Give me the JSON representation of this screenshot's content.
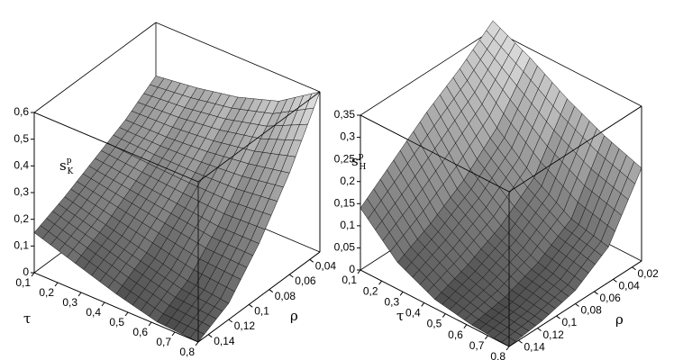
{
  "chart_data": [
    {
      "type": "surface",
      "xlabel": "τ",
      "ylabel": "ρ",
      "zlabel": {
        "base": "s",
        "sup": "p",
        "sub": "K"
      },
      "x": [
        0.1,
        0.275,
        0.45,
        0.625,
        0.8
      ],
      "y": [
        0.15,
        0.12,
        0.09,
        0.06,
        0.03
      ],
      "z": [
        [
          0.15,
          0.1,
          0.05,
          0.01,
          0.0
        ],
        [
          0.2,
          0.16,
          0.12,
          0.08,
          0.06
        ],
        [
          0.26,
          0.24,
          0.22,
          0.2,
          0.2
        ],
        [
          0.32,
          0.32,
          0.33,
          0.35,
          0.38
        ],
        [
          0.4,
          0.42,
          0.45,
          0.5,
          0.6
        ]
      ],
      "xlim": [
        0.1,
        0.8
      ],
      "ylim": [
        0.03,
        0.15
      ],
      "zlim": [
        0,
        0.6
      ],
      "xticks": [
        {
          "value": 0.1,
          "label": "0,1"
        },
        {
          "value": 0.2,
          "label": "0,2"
        },
        {
          "value": 0.3,
          "label": "0,3"
        },
        {
          "value": 0.4,
          "label": "0,4"
        },
        {
          "value": 0.5,
          "label": "0,5"
        },
        {
          "value": 0.6,
          "label": "0,6"
        },
        {
          "value": 0.7,
          "label": "0,7"
        },
        {
          "value": 0.8,
          "label": "0,8"
        }
      ],
      "yticks": [
        {
          "value": 0.04,
          "label": "0,04"
        },
        {
          "value": 0.06,
          "label": "0,06"
        },
        {
          "value": 0.08,
          "label": "0,08"
        },
        {
          "value": 0.1,
          "label": "0,1"
        },
        {
          "value": 0.12,
          "label": "0,12"
        },
        {
          "value": 0.14,
          "label": "0,14"
        }
      ],
      "zticks": [
        0,
        {
          "value": 0.1,
          "label": "0,1"
        },
        {
          "value": 0.2,
          "label": "0,2"
        },
        {
          "value": 0.3,
          "label": "0,3"
        },
        {
          "value": 0.4,
          "label": "0,4"
        },
        {
          "value": 0.5,
          "label": "0,5"
        },
        {
          "value": 0.6,
          "label": "0,6"
        }
      ]
    },
    {
      "type": "surface",
      "xlabel": "τ",
      "ylabel": "ρ",
      "zlabel": {
        "base": "s",
        "sup": "p",
        "sub": "H"
      },
      "x": [
        0.1,
        0.275,
        0.45,
        0.625,
        0.8
      ],
      "y": [
        0.15,
        0.115,
        0.08,
        0.045,
        0.01
      ],
      "z": [
        [
          0.14,
          0.06,
          0.02,
          0.005,
          0.0
        ],
        [
          0.2,
          0.1,
          0.05,
          0.02,
          0.01
        ],
        [
          0.26,
          0.15,
          0.09,
          0.05,
          0.03
        ],
        [
          0.31,
          0.22,
          0.15,
          0.1,
          0.08
        ],
        [
          0.37,
          0.33,
          0.28,
          0.24,
          0.21
        ]
      ],
      "xlim": [
        0.1,
        0.8
      ],
      "ylim": [
        0.01,
        0.15
      ],
      "zlim": [
        0,
        0.35
      ],
      "xticks": [
        {
          "value": 0.1,
          "label": "0,1"
        },
        {
          "value": 0.2,
          "label": "0,2"
        },
        {
          "value": 0.3,
          "label": "0,3"
        },
        {
          "value": 0.4,
          "label": "0,4"
        },
        {
          "value": 0.5,
          "label": "0,5"
        },
        {
          "value": 0.6,
          "label": "0,6"
        },
        {
          "value": 0.7,
          "label": "0,7"
        },
        {
          "value": 0.8,
          "label": "0,8"
        }
      ],
      "yticks": [
        {
          "value": 0.02,
          "label": "0,02"
        },
        {
          "value": 0.04,
          "label": "0,04"
        },
        {
          "value": 0.06,
          "label": "0,06"
        },
        {
          "value": 0.08,
          "label": "0,08"
        },
        {
          "value": 0.1,
          "label": "0,1"
        },
        {
          "value": 0.12,
          "label": "0,12"
        },
        {
          "value": 0.14,
          "label": "0,14"
        }
      ],
      "zticks": [
        0,
        {
          "value": 0.05,
          "label": "0,05"
        },
        {
          "value": 0.1,
          "label": "0,1"
        },
        {
          "value": 0.15,
          "label": "0,15"
        },
        {
          "value": 0.2,
          "label": "0,2"
        },
        {
          "value": 0.25,
          "label": "0,25"
        },
        {
          "value": 0.3,
          "label": "0,3"
        },
        {
          "value": 0.35,
          "label": "0,35"
        }
      ]
    }
  ]
}
